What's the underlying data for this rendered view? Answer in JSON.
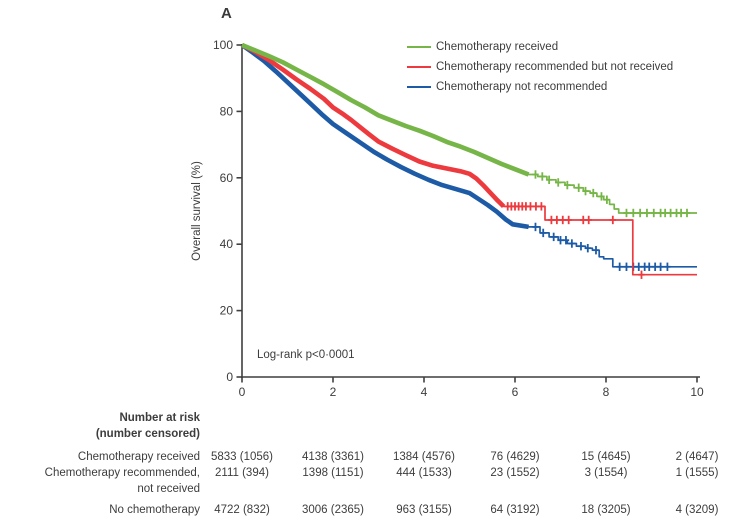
{
  "panel_label": "A",
  "colors": {
    "green": "#76b547",
    "red": "#ec3a3e",
    "blue": "#1d5ba6",
    "axis": "#3f3f3f",
    "text": "#3d3d3d"
  },
  "chart_data": {
    "type": "line",
    "subtype": "kaplan-meier",
    "ylabel": "Overall survival (%)",
    "xlabel": "",
    "xlim": [
      0,
      10
    ],
    "ylim": [
      0,
      100
    ],
    "xticks": [
      0,
      2,
      4,
      6,
      8,
      10
    ],
    "yticks": [
      0,
      20,
      40,
      60,
      80,
      100
    ],
    "annotation": "Log-rank p<0·0001",
    "legend_position": "top-right",
    "grid": false,
    "series": [
      {
        "name": "Chemotherapy received",
        "color": "#76b547",
        "thick_until": 6.3,
        "points": [
          [
            0,
            100
          ],
          [
            0.3,
            98.3
          ],
          [
            0.6,
            96.6
          ],
          [
            0.9,
            94.8
          ],
          [
            1.2,
            92.6
          ],
          [
            1.5,
            90.4
          ],
          [
            1.8,
            88.2
          ],
          [
            2.1,
            85.8
          ],
          [
            2.4,
            83.4
          ],
          [
            2.7,
            81.2
          ],
          [
            3.0,
            78.8
          ],
          [
            3.3,
            77.2
          ],
          [
            3.6,
            75.6
          ],
          [
            3.9,
            74.2
          ],
          [
            4.2,
            72.6
          ],
          [
            4.5,
            70.8
          ],
          [
            4.8,
            69.4
          ],
          [
            5.1,
            67.8
          ],
          [
            5.4,
            66.0
          ],
          [
            5.7,
            64.2
          ],
          [
            6.0,
            62.6
          ],
          [
            6.3,
            61.0
          ],
          [
            6.5,
            60.4
          ],
          [
            6.7,
            59.4
          ],
          [
            6.9,
            58.6
          ],
          [
            7.1,
            57.8
          ],
          [
            7.3,
            57.0
          ],
          [
            7.5,
            56.0
          ],
          [
            7.65,
            55.4
          ],
          [
            7.8,
            54.4
          ],
          [
            7.95,
            53.4
          ],
          [
            8.08,
            52.0
          ],
          [
            8.18,
            50.6
          ],
          [
            8.28,
            49.4
          ],
          [
            10,
            49.4
          ]
        ],
        "censor_ticks": [
          6.45,
          6.6,
          6.75,
          6.95,
          7.15,
          7.4,
          7.55,
          7.72,
          7.9,
          8.02,
          8.45,
          8.6,
          8.75,
          8.9,
          9.05,
          9.2,
          9.3,
          9.42,
          9.55,
          9.65,
          9.78
        ]
      },
      {
        "name": "Chemotherapy recommended but not received",
        "color": "#ec3a3e",
        "thick_until": 5.75,
        "points": [
          [
            0,
            100
          ],
          [
            0.3,
            97.9
          ],
          [
            0.6,
            95.4
          ],
          [
            0.9,
            92.6
          ],
          [
            1.2,
            89.6
          ],
          [
            1.5,
            86.8
          ],
          [
            1.8,
            83.8
          ],
          [
            2.0,
            81.2
          ],
          [
            2.2,
            79.4
          ],
          [
            2.4,
            77.4
          ],
          [
            2.6,
            75.2
          ],
          [
            2.8,
            73.0
          ],
          [
            3.0,
            70.9
          ],
          [
            3.3,
            68.8
          ],
          [
            3.6,
            66.8
          ],
          [
            3.9,
            64.9
          ],
          [
            4.2,
            63.6
          ],
          [
            4.5,
            62.8
          ],
          [
            4.8,
            62.0
          ],
          [
            5.0,
            61.2
          ],
          [
            5.15,
            59.8
          ],
          [
            5.3,
            57.8
          ],
          [
            5.45,
            55.6
          ],
          [
            5.6,
            53.4
          ],
          [
            5.75,
            51.4
          ],
          [
            6.66,
            47.3
          ],
          [
            8.59,
            30.8
          ],
          [
            10,
            30.8
          ]
        ],
        "censor_ticks": [
          5.84,
          5.92,
          6.0,
          6.08,
          6.16,
          6.24,
          6.34,
          6.46,
          6.58,
          6.8,
          6.92,
          7.05,
          7.18,
          7.5,
          7.62,
          8.15,
          8.78
        ]
      },
      {
        "name": "Chemotherapy not recommended",
        "color": "#1d5ba6",
        "thick_until": 6.35,
        "points": [
          [
            0,
            100
          ],
          [
            0.25,
            97.6
          ],
          [
            0.5,
            95.0
          ],
          [
            0.75,
            92.0
          ],
          [
            1.0,
            88.8
          ],
          [
            1.25,
            85.6
          ],
          [
            1.5,
            82.4
          ],
          [
            1.75,
            79.2
          ],
          [
            2.0,
            76.2
          ],
          [
            2.3,
            73.4
          ],
          [
            2.6,
            70.6
          ],
          [
            2.9,
            67.8
          ],
          [
            3.2,
            65.4
          ],
          [
            3.5,
            63.2
          ],
          [
            3.8,
            61.2
          ],
          [
            4.1,
            59.4
          ],
          [
            4.4,
            57.8
          ],
          [
            4.7,
            56.6
          ],
          [
            5.0,
            55.4
          ],
          [
            5.2,
            53.6
          ],
          [
            5.4,
            51.8
          ],
          [
            5.6,
            49.8
          ],
          [
            5.8,
            47.4
          ],
          [
            5.95,
            46.0
          ],
          [
            6.3,
            45.2
          ],
          [
            6.55,
            43.4
          ],
          [
            6.75,
            42.2
          ],
          [
            6.95,
            41.2
          ],
          [
            7.15,
            40.2
          ],
          [
            7.35,
            39.4
          ],
          [
            7.55,
            38.8
          ],
          [
            7.7,
            38.2
          ],
          [
            7.85,
            36.2
          ],
          [
            7.95,
            35.6
          ],
          [
            8.15,
            33.2
          ],
          [
            10,
            33.2
          ]
        ],
        "censor_ticks": [
          6.45,
          6.62,
          6.85,
          7.0,
          7.12,
          7.25,
          7.45,
          7.6,
          7.78,
          8.3,
          8.45,
          8.6,
          8.72,
          8.85,
          8.95,
          9.08,
          9.2,
          9.35
        ]
      }
    ]
  },
  "risk_table": {
    "header_line1": "Number at risk",
    "header_line2": "(number censored)",
    "column_times": [
      0,
      2,
      4,
      6,
      8,
      10
    ],
    "rows": [
      {
        "label_lines": [
          "Chemotherapy received"
        ],
        "values": [
          "5833 (1056)",
          "4138 (3361)",
          "1384 (4576)",
          "76 (4629)",
          "15 (4645)",
          "2 (4647)"
        ]
      },
      {
        "label_lines": [
          "Chemotherapy recommended,",
          "not received"
        ],
        "values": [
          "2111 (394)",
          "1398 (1151)",
          "444 (1533)",
          "23 (1552)",
          "3 (1554)",
          "1 (1555)"
        ]
      },
      {
        "label_lines": [
          "No chemotherapy"
        ],
        "values": [
          "4722 (832)",
          "3006 (2365)",
          "963 (3155)",
          "64 (3192)",
          "18 (3205)",
          "4 (3209)"
        ]
      }
    ]
  }
}
